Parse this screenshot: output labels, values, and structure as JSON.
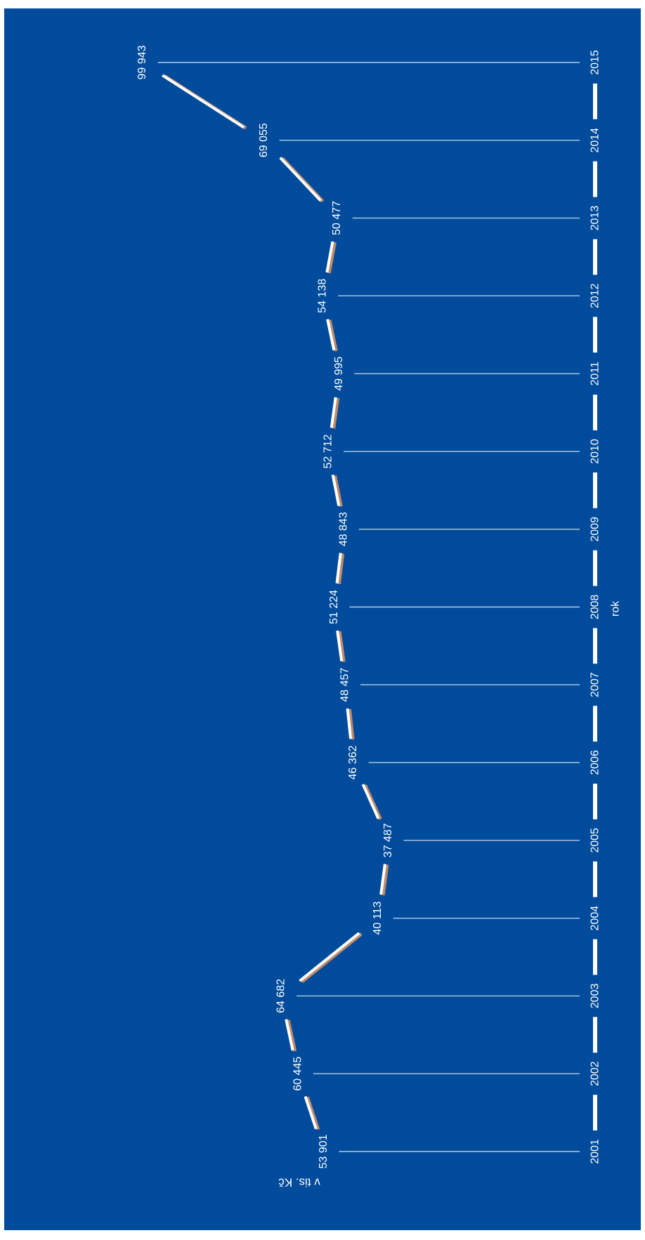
{
  "colors": {
    "background": "#004b9b",
    "line": "#ffffff",
    "line_shadow": "#c08a6a",
    "dropline": "#d8e2f3"
  },
  "chart_data": {
    "type": "line",
    "orientation": "rotated-90",
    "x": [
      "2001",
      "2002",
      "2003",
      "2004",
      "2005",
      "2006",
      "2007",
      "2008",
      "2009",
      "2010",
      "2011",
      "2012",
      "2013",
      "2014",
      "2015"
    ],
    "series": [
      {
        "values": [
          53901,
          60445,
          64682,
          40113,
          37487,
          46362,
          48457,
          51224,
          48843,
          52712,
          49995,
          54138,
          50477,
          69055,
          99943
        ],
        "value_labels": [
          "53 901",
          "60 445",
          "64 682",
          "40 113",
          "37 487",
          "46 362",
          "48 457",
          "51 224",
          "48 843",
          "52 712",
          "49 995",
          "54 138",
          "50 477",
          "69 055",
          "99 943"
        ]
      }
    ],
    "xlabel": "rok",
    "ylabel": "v tis. Kč",
    "grid": false,
    "legend": false
  }
}
